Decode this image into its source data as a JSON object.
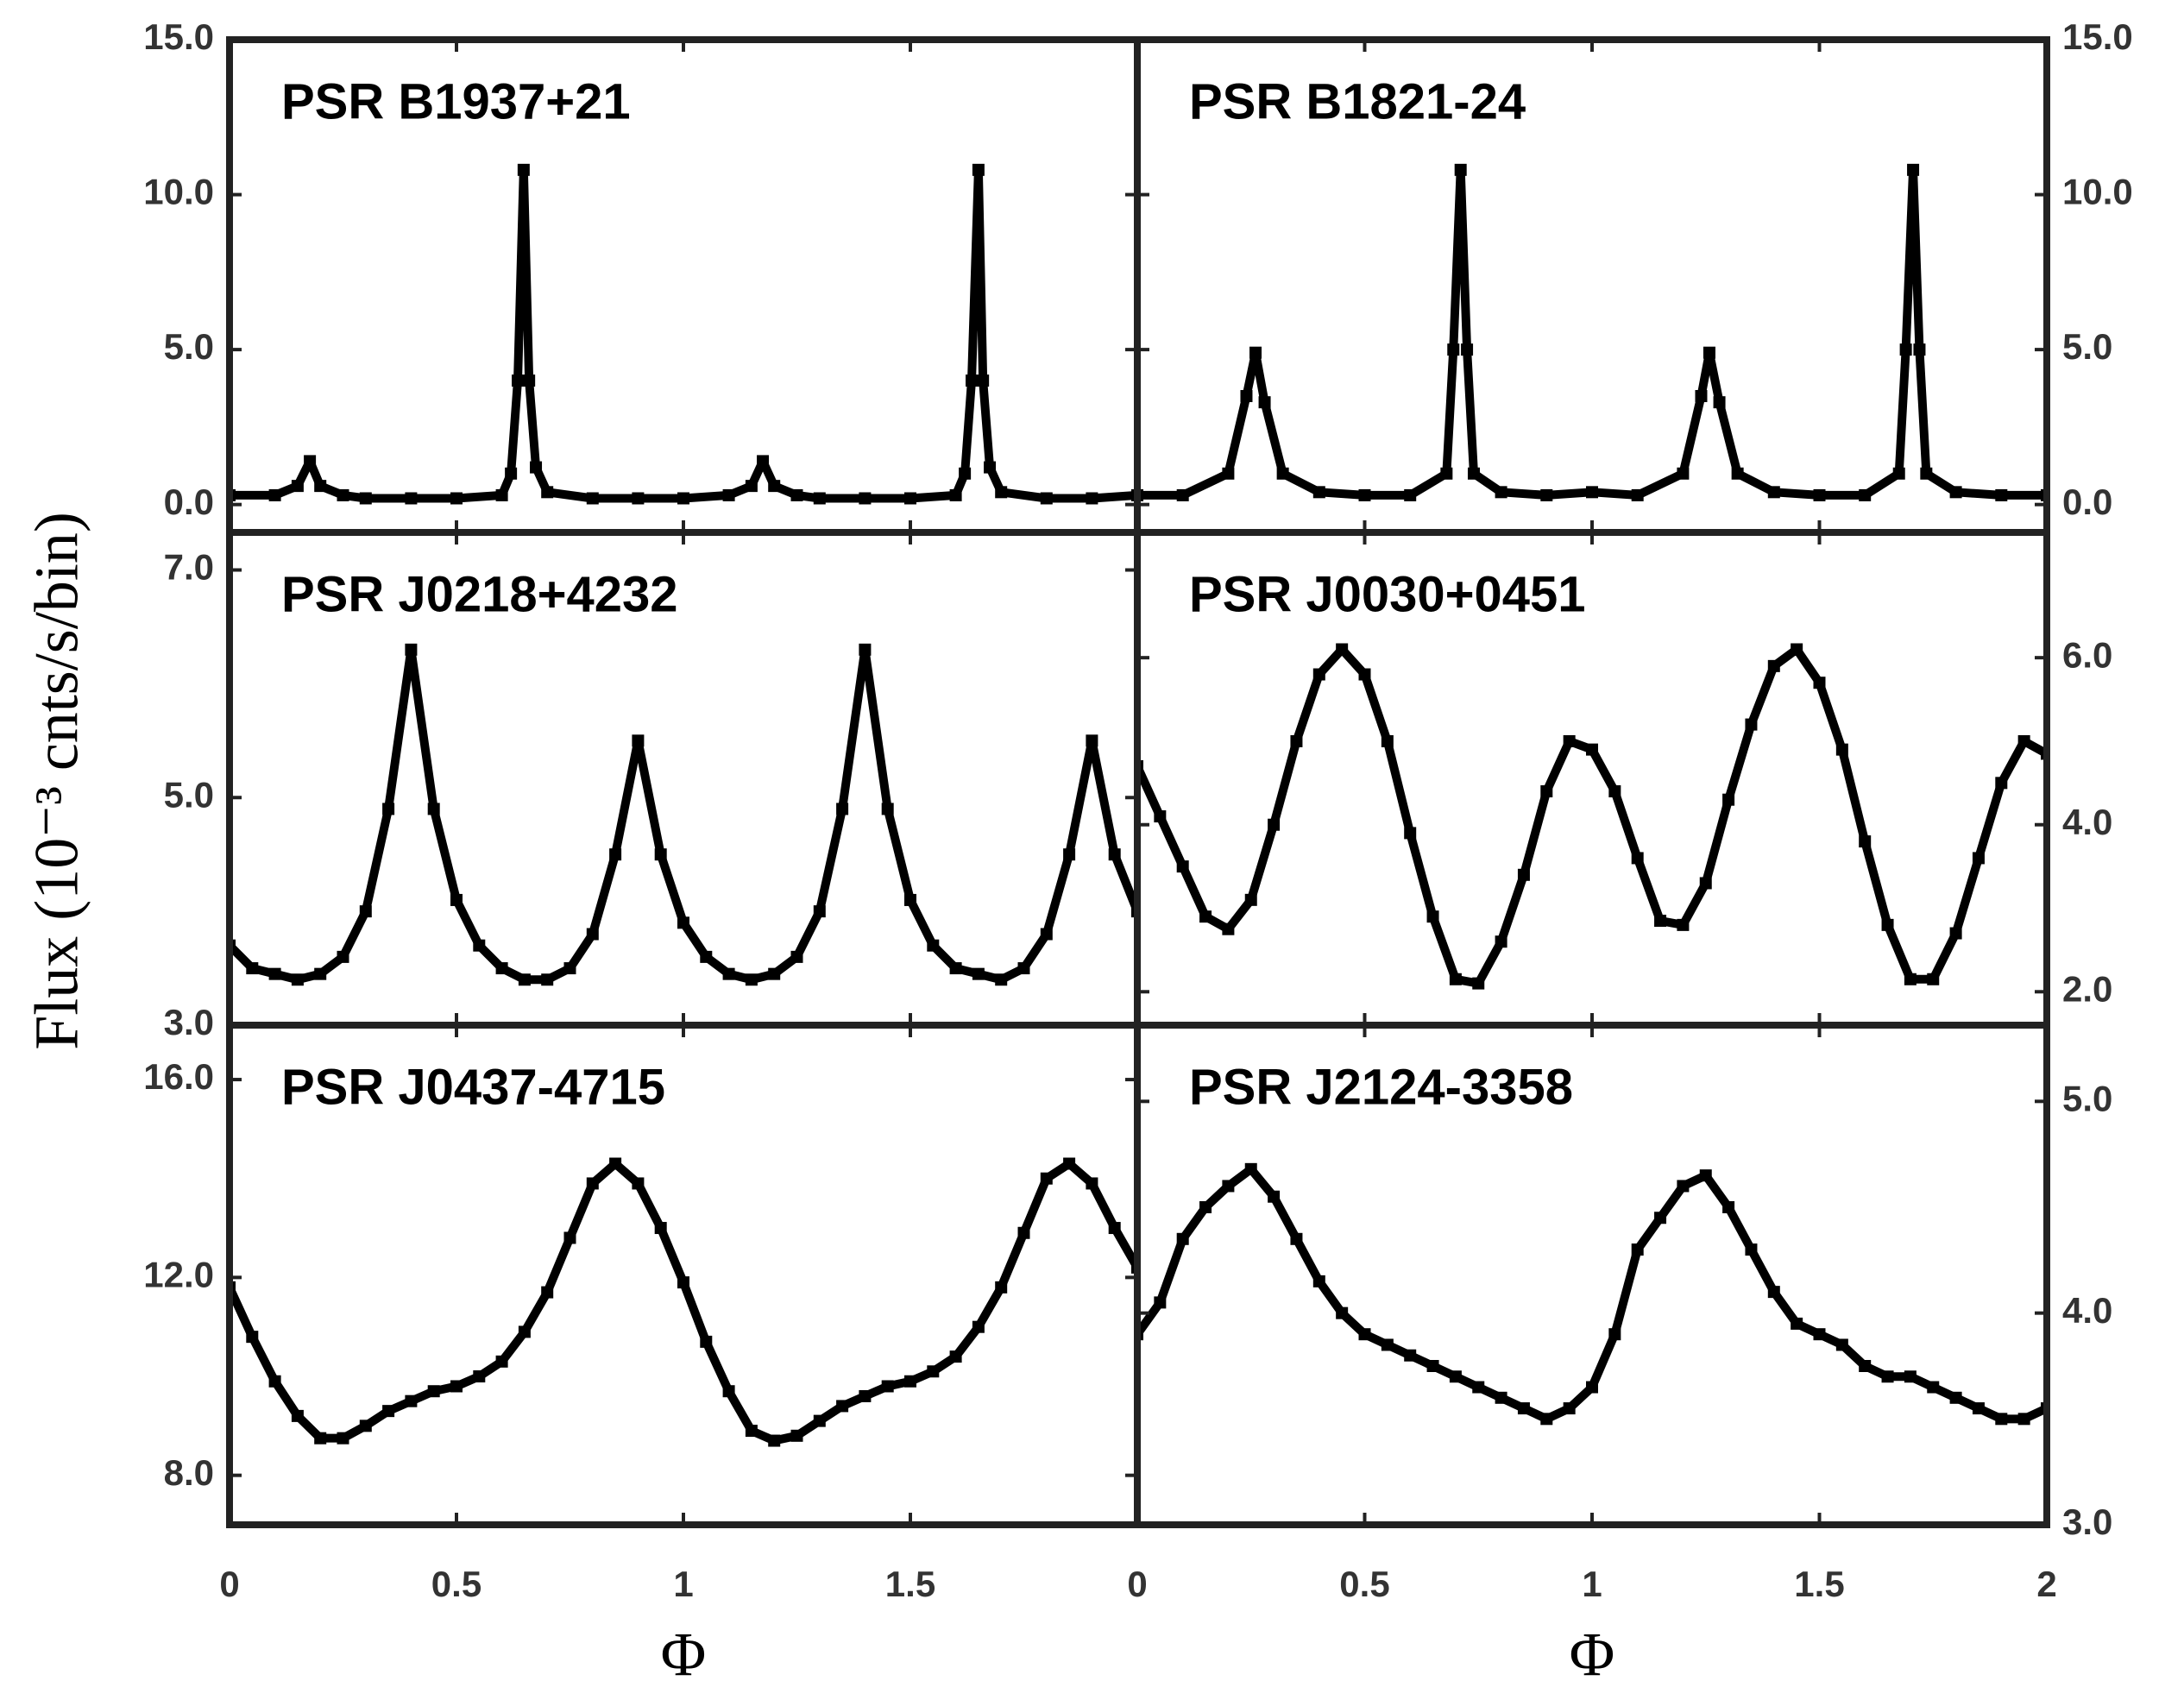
{
  "chart_data": [
    {
      "type": "line",
      "title": "PSR B1937+21",
      "color": "#000000",
      "xlim": [
        0,
        2
      ],
      "ylim": [
        -0.9,
        15.0
      ],
      "yticks": [
        {
          "value": 0,
          "label": "0.0"
        },
        {
          "value": 5,
          "label": "5.0"
        },
        {
          "value": 10,
          "label": "10.0"
        },
        {
          "value": 15,
          "label": "15.0"
        }
      ],
      "x": [
        0,
        0.1,
        0.15,
        0.177,
        0.2,
        0.25,
        0.3,
        0.4,
        0.5,
        0.6,
        0.62,
        0.635,
        0.648,
        0.66,
        0.675,
        0.7,
        0.8,
        0.9,
        1.0,
        1.1,
        1.15,
        1.175,
        1.2,
        1.25,
        1.3,
        1.4,
        1.5,
        1.6,
        1.62,
        1.635,
        1.65,
        1.66,
        1.675,
        1.7,
        1.8,
        1.9,
        2.0
      ],
      "values": [
        0.3,
        0.3,
        0.6,
        1.4,
        0.6,
        0.3,
        0.2,
        0.2,
        0.2,
        0.3,
        1.0,
        4.0,
        10.8,
        4.0,
        1.2,
        0.4,
        0.2,
        0.2,
        0.2,
        0.3,
        0.6,
        1.4,
        0.6,
        0.3,
        0.2,
        0.2,
        0.2,
        0.3,
        1.0,
        4.0,
        10.8,
        4.0,
        1.2,
        0.4,
        0.2,
        0.2,
        0.3
      ]
    },
    {
      "type": "line",
      "title": "PSR B1821-24",
      "color": "#000000",
      "xlim": [
        0,
        2
      ],
      "ylim": [
        -0.9,
        15.0
      ],
      "yticks": [
        {
          "value": 0,
          "label": "0.0"
        },
        {
          "value": 5,
          "label": "5.0"
        },
        {
          "value": 10,
          "label": "10.0"
        },
        {
          "value": 15,
          "label": "15.0"
        }
      ],
      "x": [
        0,
        0.1,
        0.2,
        0.24,
        0.26,
        0.28,
        0.32,
        0.4,
        0.5,
        0.6,
        0.68,
        0.695,
        0.711,
        0.725,
        0.74,
        0.8,
        0.9,
        1.0,
        1.1,
        1.2,
        1.24,
        1.258,
        1.28,
        1.32,
        1.4,
        1.5,
        1.6,
        1.675,
        1.69,
        1.706,
        1.72,
        1.735,
        1.8,
        1.9,
        2.0
      ],
      "values": [
        0.3,
        0.3,
        1.0,
        3.5,
        4.9,
        3.3,
        1.0,
        0.4,
        0.3,
        0.3,
        1.0,
        5.0,
        10.8,
        5.0,
        1.0,
        0.4,
        0.3,
        0.4,
        0.3,
        1.0,
        3.5,
        4.9,
        3.3,
        1.0,
        0.4,
        0.3,
        0.3,
        1.0,
        5.0,
        10.8,
        5.0,
        1.0,
        0.4,
        0.3,
        0.3
      ]
    },
    {
      "type": "line",
      "title": "PSR J0218+4232",
      "color": "#000000",
      "xlim": [
        0,
        2
      ],
      "ylim": [
        3.0,
        7.33
      ],
      "ylabel": "Flux (10⁻³ cnts/s/bin)",
      "yticks": [
        {
          "value": 3,
          "label": "3.0"
        },
        {
          "value": 5,
          "label": "5.0"
        },
        {
          "value": 7,
          "label": "7.0"
        }
      ],
      "x": [
        0,
        0.05,
        0.1,
        0.15,
        0.2,
        0.25,
        0.3,
        0.35,
        0.4,
        0.45,
        0.5,
        0.55,
        0.6,
        0.65,
        0.7,
        0.75,
        0.8,
        0.85,
        0.9,
        0.95,
        1.0,
        1.05,
        1.1,
        1.15,
        1.2,
        1.25,
        1.3,
        1.35,
        1.4,
        1.45,
        1.5,
        1.55,
        1.6,
        1.65,
        1.7,
        1.75,
        1.8,
        1.85,
        1.9,
        1.95,
        2.0
      ],
      "values": [
        3.7,
        3.5,
        3.45,
        3.4,
        3.45,
        3.6,
        4.0,
        4.9,
        6.3,
        4.9,
        4.1,
        3.7,
        3.5,
        3.4,
        3.4,
        3.5,
        3.8,
        4.5,
        5.5,
        4.5,
        3.9,
        3.6,
        3.45,
        3.4,
        3.45,
        3.6,
        4.0,
        4.9,
        6.3,
        4.9,
        4.1,
        3.7,
        3.5,
        3.45,
        3.4,
        3.5,
        3.8,
        4.5,
        5.5,
        4.5,
        4.0
      ]
    },
    {
      "type": "line",
      "title": "PSR J0030+0451",
      "color": "#000000",
      "xlim": [
        0,
        2
      ],
      "ylim": [
        1.6,
        7.5
      ],
      "yticks": [
        {
          "value": 2,
          "label": "2.0"
        },
        {
          "value": 4,
          "label": "4.0"
        },
        {
          "value": 6,
          "label": "6.0"
        }
      ],
      "x": [
        0,
        0.05,
        0.1,
        0.15,
        0.2,
        0.25,
        0.3,
        0.35,
        0.4,
        0.45,
        0.5,
        0.55,
        0.6,
        0.65,
        0.7,
        0.75,
        0.8,
        0.85,
        0.9,
        0.95,
        1.0,
        1.05,
        1.1,
        1.15,
        1.2,
        1.25,
        1.3,
        1.35,
        1.4,
        1.45,
        1.5,
        1.55,
        1.6,
        1.65,
        1.7,
        1.75,
        1.8,
        1.85,
        1.9,
        1.95,
        2.0
      ],
      "values": [
        4.7,
        4.1,
        3.5,
        2.9,
        2.75,
        3.1,
        4.0,
        5.0,
        5.8,
        6.1,
        5.8,
        5.0,
        3.9,
        2.9,
        2.15,
        2.1,
        2.6,
        3.4,
        4.4,
        5.0,
        4.9,
        4.4,
        3.6,
        2.85,
        2.8,
        3.3,
        4.3,
        5.2,
        5.9,
        6.1,
        5.7,
        4.9,
        3.8,
        2.8,
        2.15,
        2.15,
        2.7,
        3.6,
        4.5,
        5.0,
        4.85
      ]
    },
    {
      "type": "line",
      "title": "PSR J0437-4715",
      "color": "#000000",
      "xlim": [
        0,
        2
      ],
      "ylim": [
        7.0,
        17.1
      ],
      "xlabel": "Φ",
      "xticks": [
        0,
        0.5,
        1,
        1.5
      ],
      "yticks": [
        {
          "value": 8,
          "label": "8.0"
        },
        {
          "value": 12,
          "label": "12.0"
        },
        {
          "value": 16,
          "label": "16.0"
        }
      ],
      "x": [
        0,
        0.05,
        0.1,
        0.15,
        0.2,
        0.25,
        0.3,
        0.35,
        0.4,
        0.45,
        0.5,
        0.55,
        0.6,
        0.65,
        0.7,
        0.75,
        0.8,
        0.85,
        0.9,
        0.95,
        1.0,
        1.05,
        1.1,
        1.15,
        1.2,
        1.25,
        1.3,
        1.35,
        1.4,
        1.45,
        1.5,
        1.55,
        1.6,
        1.65,
        1.7,
        1.75,
        1.8,
        1.85,
        1.9,
        1.95,
        2.0
      ],
      "values": [
        11.8,
        10.8,
        9.9,
        9.2,
        8.75,
        8.75,
        9.0,
        9.3,
        9.5,
        9.7,
        9.8,
        10.0,
        10.3,
        10.9,
        11.7,
        12.8,
        13.9,
        14.3,
        13.9,
        13.0,
        11.9,
        10.7,
        9.7,
        8.9,
        8.7,
        8.8,
        9.1,
        9.4,
        9.6,
        9.8,
        9.9,
        10.1,
        10.4,
        11.0,
        11.8,
        12.9,
        14.0,
        14.3,
        13.9,
        13.0,
        12.2
      ]
    },
    {
      "type": "line",
      "title": "PSR J2124-3358",
      "color": "#000000",
      "xlim": [
        0,
        2
      ],
      "ylim": [
        3.0,
        5.36
      ],
      "xlabel": "Φ",
      "xticks": [
        0,
        0.5,
        1,
        1.5,
        2
      ],
      "yticks": [
        {
          "value": 3,
          "label": "3.0"
        },
        {
          "value": 4,
          "label": "4.0"
        },
        {
          "value": 5,
          "label": "5.0"
        }
      ],
      "x": [
        0,
        0.05,
        0.1,
        0.15,
        0.2,
        0.25,
        0.3,
        0.35,
        0.4,
        0.45,
        0.5,
        0.55,
        0.6,
        0.65,
        0.7,
        0.75,
        0.8,
        0.85,
        0.9,
        0.95,
        1.0,
        1.05,
        1.1,
        1.15,
        1.2,
        1.25,
        1.3,
        1.35,
        1.4,
        1.45,
        1.5,
        1.55,
        1.6,
        1.65,
        1.7,
        1.75,
        1.8,
        1.85,
        1.9,
        1.95,
        2.0
      ],
      "values": [
        3.9,
        4.05,
        4.35,
        4.5,
        4.6,
        4.68,
        4.55,
        4.35,
        4.15,
        4.0,
        3.9,
        3.85,
        3.8,
        3.75,
        3.7,
        3.65,
        3.6,
        3.55,
        3.5,
        3.55,
        3.65,
        3.9,
        4.3,
        4.45,
        4.6,
        4.65,
        4.5,
        4.3,
        4.1,
        3.95,
        3.9,
        3.85,
        3.75,
        3.7,
        3.7,
        3.65,
        3.6,
        3.55,
        3.5,
        3.5,
        3.55
      ]
    }
  ]
}
